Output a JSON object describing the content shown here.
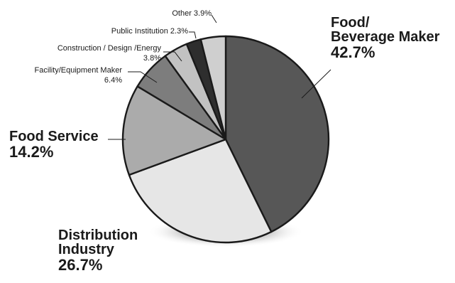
{
  "chart_data": {
    "type": "pie",
    "title": "",
    "slices": [
      {
        "name": "Food/ Beverage Maker",
        "name_lines": [
          "Food/",
          "Beverage Maker"
        ],
        "value": 42.7,
        "value_label": "42.7%",
        "color": "#575757"
      },
      {
        "name": "Distribution Industry",
        "name_lines": [
          "Distribution",
          "Industry"
        ],
        "value": 26.7,
        "value_label": "26.7%",
        "color": "#e6e6e6"
      },
      {
        "name": "Food Service",
        "name_lines": [
          "Food Service"
        ],
        "value": 14.2,
        "value_label": "14.2%",
        "color": "#ababab"
      },
      {
        "name": "Facility/Equipment Maker",
        "name_lines": [
          "Facility/Equipment Maker"
        ],
        "value": 6.4,
        "value_label": "6.4%",
        "color": "#7d7d7d"
      },
      {
        "name": "Construction / Design /Energy",
        "name_lines": [
          "Construction / Design /Energy"
        ],
        "value": 3.8,
        "value_label": "3.8%",
        "color": "#c2c2c2"
      },
      {
        "name": "Public Institution",
        "name_lines": [
          "Public Institution"
        ],
        "value": 2.3,
        "value_label": "2.3%",
        "color": "#2e2e2e"
      },
      {
        "name": "Other",
        "name_lines": [
          "Other"
        ],
        "value": 3.9,
        "value_label": "3.9%",
        "color": "#cfcfcf"
      }
    ],
    "start_angle_deg": 0,
    "direction": "clockwise",
    "shadow": true,
    "legend": "none"
  }
}
